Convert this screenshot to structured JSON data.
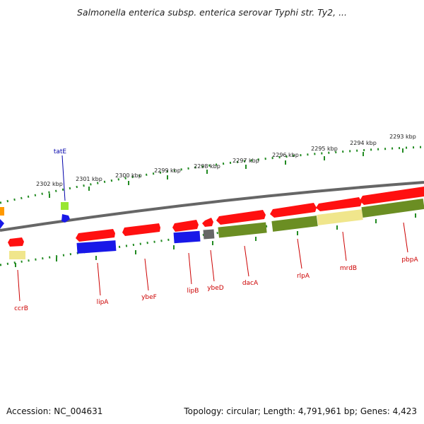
{
  "title": "Salmonella enterica subsp. enterica serovar Typhi str. Ty2, ...",
  "footer": {
    "accession": "Accession: NC_004631",
    "summary": "Topology: circular; Length: 4,791,961 bp; Genes: 4,423"
  },
  "colors": {
    "red": "#ff1010",
    "blue": "#1818e8",
    "olive": "#6b8e23",
    "khaki": "#f0e68c",
    "gray": "#666666",
    "orange": "#ff9900",
    "lime": "#99e633",
    "scale_green": "#228b22",
    "label_red": "#cc0000",
    "label_blue": "#0000aa"
  },
  "map": {
    "ticks_top": [
      "2302 kbp",
      "2301 kbp",
      "2300 kbp",
      "2299 kbp",
      "2298 kbp",
      "2297 kbp",
      "2296 kbp",
      "2295 kbp",
      "2294 kbp",
      "2293 kbp"
    ],
    "gene_labels": [
      "tatE",
      "ccrB",
      "lipA",
      "ybeF",
      "lipB",
      "ybeD",
      "dacA",
      "rlpA",
      "mrdB",
      "pbpA"
    ]
  }
}
